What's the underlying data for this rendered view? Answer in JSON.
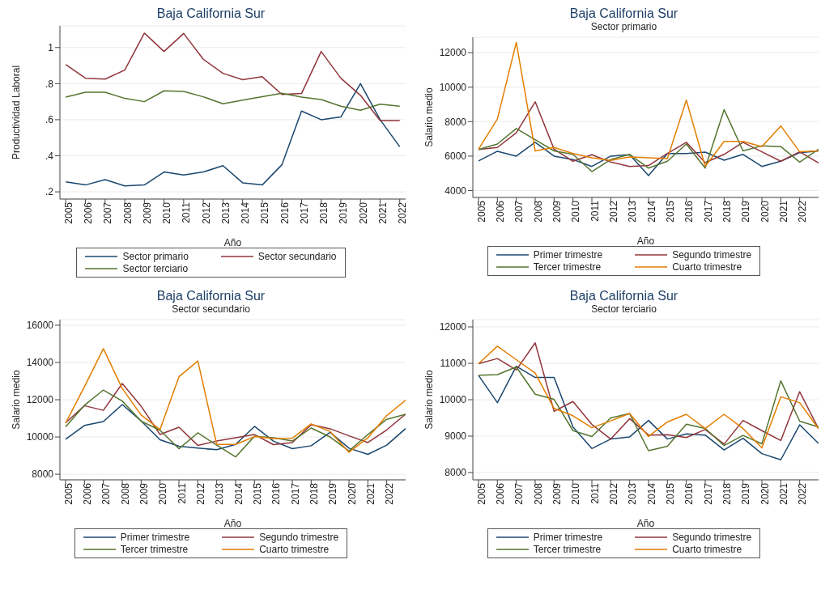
{
  "chart_data": [
    {
      "type": "line",
      "title": "Baja California Sur",
      "xlabel": "Año",
      "ylabel": "Productividad Laboral",
      "x": [
        2005,
        2006,
        2007,
        2008,
        2009,
        2010,
        2011,
        2012,
        2013,
        2014,
        2015,
        2016,
        2017,
        2018,
        2019,
        2020,
        2021,
        2022
      ],
      "xlim": [
        2004.7,
        2022.3
      ],
      "xticks": [
        2005,
        2006,
        2007,
        2008,
        2009,
        2010,
        2011,
        2012,
        2013,
        2014,
        2015,
        2016,
        2017,
        2018,
        2019,
        2020,
        2021,
        2022
      ],
      "ylim": [
        0.16,
        1.12
      ],
      "yticks": [
        {
          "value": 0.2,
          "label": ".2"
        },
        {
          "value": 0.4,
          "label": ".4"
        },
        {
          "value": 0.6,
          "label": ".6"
        },
        {
          "value": 0.8,
          "label": ".8"
        },
        1
      ],
      "grid": "y",
      "legend": "bottom",
      "marker": "none",
      "line_style": "solid",
      "series": [
        {
          "name": "Sector primario",
          "color": "#1a476f",
          "values": [
            0.255,
            0.238,
            0.268,
            0.233,
            0.238,
            0.31,
            0.293,
            0.31,
            0.345,
            0.25,
            0.238,
            0.35,
            0.648,
            0.6,
            0.615,
            0.8,
            0.6,
            0.45
          ]
        },
        {
          "name": "Sector secundario",
          "color": "#90353b",
          "values": [
            0.905,
            0.83,
            0.825,
            0.875,
            1.08,
            0.978,
            1.078,
            0.935,
            0.857,
            0.822,
            0.838,
            0.74,
            0.745,
            0.978,
            0.83,
            0.735,
            0.595,
            0.595
          ]
        },
        {
          "name": "Sector terciario",
          "color": "#55752f",
          "values": [
            0.725,
            0.752,
            0.752,
            0.718,
            0.7,
            0.76,
            0.757,
            0.727,
            0.688,
            0.708,
            0.727,
            0.747,
            0.725,
            0.712,
            0.675,
            0.652,
            0.686,
            0.675
          ]
        }
      ]
    },
    {
      "type": "line",
      "title": "Baja California Sur",
      "subtitle": "Sector primario",
      "xlabel": "Año",
      "ylabel": "Salario medio",
      "x": [
        2005,
        2006,
        2007,
        2008,
        2009,
        2010,
        2011,
        2012,
        2013,
        2014,
        2015,
        2016,
        2017,
        2018,
        2019,
        2020,
        2021,
        2022,
        2023
      ],
      "xlim": [
        2004.7,
        2023
      ],
      "xticks": [
        2005,
        2006,
        2007,
        2008,
        2009,
        2010,
        2011,
        2012,
        2013,
        2014,
        2015,
        2016,
        2017,
        2018,
        2019,
        2020,
        2021,
        2022
      ],
      "ylim": [
        3600,
        12900
      ],
      "yticks": [
        4000,
        6000,
        8000,
        10000,
        12000
      ],
      "grid": "y",
      "legend": "bottom",
      "marker": "none",
      "line_style": "solid",
      "series": [
        {
          "name": "Primer trimestre",
          "color": "#1a476f",
          "values": [
            5720,
            6280,
            6000,
            6800,
            6000,
            5800,
            5400,
            6000,
            6080,
            4870,
            6150,
            6150,
            6230,
            5760,
            6100,
            5400,
            5700,
            6200,
            6300
          ]
        },
        {
          "name": "Segundo trimestre",
          "color": "#90353b",
          "values": [
            6380,
            6500,
            7350,
            9150,
            6400,
            5700,
            6080,
            5650,
            5400,
            5450,
            6150,
            6800,
            5620,
            6100,
            6800,
            6250,
            5700,
            6250,
            5600
          ]
        },
        {
          "name": "Tercer trimestre",
          "color": "#55752f",
          "values": [
            6380,
            6700,
            7600,
            6950,
            6300,
            6100,
            5100,
            5800,
            6100,
            5300,
            5700,
            6700,
            5300,
            8700,
            6300,
            6600,
            6550,
            5650,
            6400
          ]
        },
        {
          "name": "Cuarto trimestre",
          "color": "#e37e00",
          "values": [
            6400,
            8150,
            12600,
            6300,
            6500,
            6150,
            5900,
            5750,
            5950,
            5900,
            5850,
            9250,
            5400,
            6850,
            6850,
            6550,
            7750,
            6250,
            6300
          ]
        }
      ]
    },
    {
      "type": "line",
      "title": "Baja California Sur",
      "subtitle": "Sector secundario",
      "xlabel": "Año",
      "ylabel": "Salario medio",
      "x": [
        2005,
        2006,
        2007,
        2008,
        2009,
        2010,
        2011,
        2012,
        2013,
        2014,
        2015,
        2016,
        2017,
        2018,
        2019,
        2020,
        2021,
        2022,
        2023
      ],
      "xlim": [
        2004.7,
        2023
      ],
      "xticks": [
        2005,
        2006,
        2007,
        2008,
        2009,
        2010,
        2011,
        2012,
        2013,
        2014,
        2015,
        2016,
        2017,
        2018,
        2019,
        2020,
        2021,
        2022
      ],
      "ylim": [
        7700,
        16300
      ],
      "yticks": [
        8000,
        10000,
        12000,
        14000,
        16000
      ],
      "grid": "y",
      "legend": "bottom",
      "marker": "none",
      "line_style": "solid",
      "series": [
        {
          "name": "Primer trimestre",
          "color": "#1a476f",
          "values": [
            9880,
            10620,
            10830,
            11740,
            10860,
            9850,
            9500,
            9400,
            9320,
            9600,
            10570,
            9780,
            9370,
            9530,
            10250,
            9400,
            9070,
            9560,
            10450
          ]
        },
        {
          "name": "Segundo trimestre",
          "color": "#90353b",
          "values": [
            10760,
            11680,
            11430,
            12870,
            11650,
            10130,
            10520,
            9550,
            9780,
            9960,
            10130,
            9590,
            9700,
            10660,
            10440,
            10060,
            9700,
            10380,
            11230
          ]
        },
        {
          "name": "Tercer trimestre",
          "color": "#55752f",
          "values": [
            10550,
            11700,
            12520,
            11930,
            10850,
            10360,
            9370,
            10220,
            9560,
            8930,
            10040,
            9960,
            9780,
            10480,
            10000,
            9250,
            10130,
            10950,
            11220
          ]
        },
        {
          "name": "Cuarto trimestre",
          "color": "#e37e00",
          "values": [
            10740,
            12700,
            14740,
            12600,
            11180,
            10400,
            13230,
            14080,
            9600,
            9600,
            10020,
            9920,
            9930,
            10700,
            10300,
            9180,
            9950,
            11150,
            11980
          ]
        }
      ]
    },
    {
      "type": "line",
      "title": "Baja California Sur",
      "subtitle": "Sector terciario",
      "xlabel": "Año",
      "ylabel": "Salario medio",
      "x": [
        2005,
        2006,
        2007,
        2008,
        2009,
        2010,
        2011,
        2012,
        2013,
        2014,
        2015,
        2016,
        2017,
        2018,
        2019,
        2020,
        2021,
        2022,
        2023
      ],
      "xlim": [
        2004.7,
        2023
      ],
      "xticks": [
        2005,
        2006,
        2007,
        2008,
        2009,
        2010,
        2011,
        2012,
        2013,
        2014,
        2015,
        2016,
        2017,
        2018,
        2019,
        2020,
        2021,
        2022
      ],
      "ylim": [
        7800,
        12200
      ],
      "yticks": [
        8000,
        9000,
        10000,
        11000,
        12000
      ],
      "grid": "y",
      "legend": "bottom",
      "marker": "none",
      "line_style": "solid",
      "series": [
        {
          "name": "Primer trimestre",
          "color": "#1a476f",
          "values": [
            10670,
            9920,
            10920,
            10610,
            10610,
            9250,
            8660,
            8920,
            8980,
            9430,
            8920,
            9060,
            9030,
            8620,
            8940,
            8520,
            8350,
            9310,
            8800
          ]
        },
        {
          "name": "Segundo trimestre",
          "color": "#90353b",
          "values": [
            10990,
            11130,
            10820,
            11560,
            9680,
            9950,
            9320,
            8920,
            9480,
            9030,
            9040,
            8960,
            9180,
            8780,
            9430,
            9150,
            8880,
            10220,
            9200
          ]
        },
        {
          "name": "Tercer trimestre",
          "color": "#55752f",
          "values": [
            10670,
            10690,
            10900,
            10150,
            10010,
            9150,
            8990,
            9500,
            9620,
            8600,
            8720,
            9330,
            9210,
            8740,
            9020,
            8790,
            10520,
            9410,
            9250
          ]
        },
        {
          "name": "Cuarto trimestre",
          "color": "#e37e00",
          "values": [
            10990,
            11470,
            11100,
            10730,
            9760,
            9560,
            9230,
            9420,
            9620,
            8990,
            9390,
            9600,
            9210,
            9600,
            9210,
            8680,
            10080,
            9920,
            9200
          ]
        }
      ]
    }
  ]
}
